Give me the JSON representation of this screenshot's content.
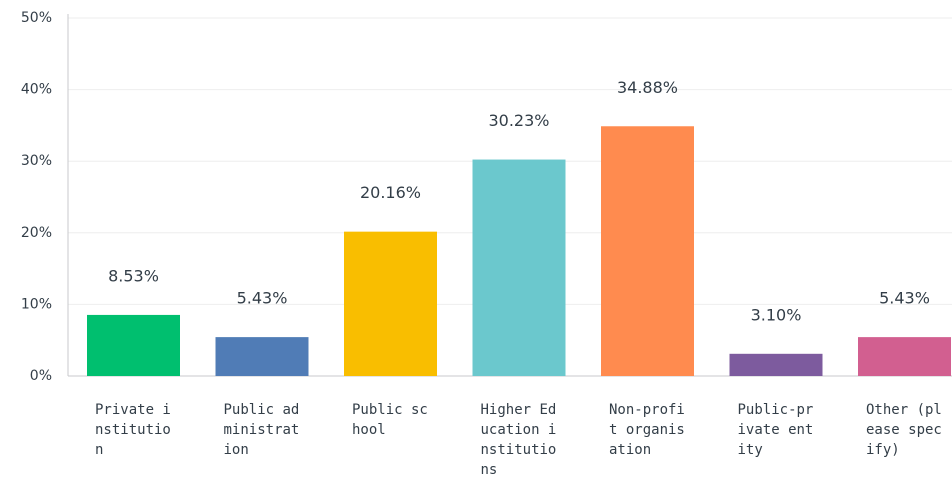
{
  "chart_data": {
    "type": "bar",
    "categories": [
      "Private institution",
      "Public administration",
      "Public school",
      "Higher Education institutions",
      "Non-profit organisation",
      "Public-private entity",
      "Other (please specify)"
    ],
    "values": [
      8.53,
      5.43,
      20.16,
      30.23,
      34.88,
      3.1,
      5.43
    ],
    "value_labels": [
      "8.53%",
      "5.43%",
      "20.16%",
      "30.23%",
      "34.88%",
      "3.10%",
      "5.43%"
    ],
    "colors": [
      "#00bf6f",
      "#507cb6",
      "#f9be00",
      "#6bc8cd",
      "#ff8b4f",
      "#7d5b9e",
      "#d25f90"
    ],
    "ylim": [
      0,
      50
    ],
    "yticks": [
      {
        "value": 0,
        "label": "0%"
      },
      {
        "value": 10,
        "label": "10%"
      },
      {
        "value": 20,
        "label": "20%"
      },
      {
        "value": 30,
        "label": "30%"
      },
      {
        "value": 40,
        "label": "40%"
      },
      {
        "value": 50,
        "label": "50%"
      }
    ],
    "grid": true
  }
}
